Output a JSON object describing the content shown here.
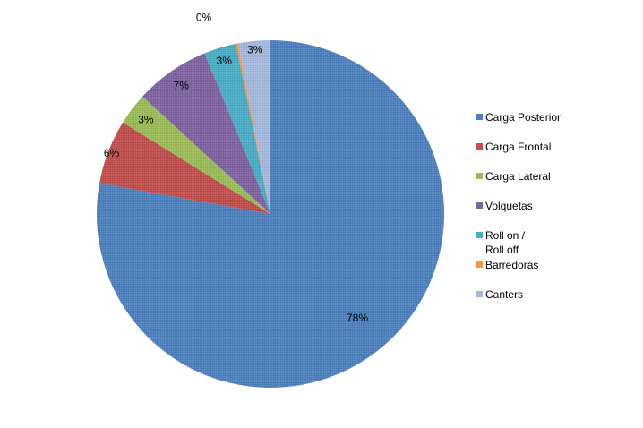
{
  "chart_data": {
    "type": "pie",
    "slices": [
      {
        "name": "Carga Posterior",
        "value": 78,
        "label": "78%",
        "color": "#4F81BD"
      },
      {
        "name": "Carga Frontal",
        "value": 6,
        "label": "6%",
        "color": "#C0504D"
      },
      {
        "name": "Carga Lateral",
        "value": 3,
        "label": "3%",
        "color": "#9BBB59"
      },
      {
        "name": "Volquetas",
        "value": 7,
        "label": "7%",
        "color": "#8064A2"
      },
      {
        "name": "Roll on /\nRoll off",
        "value": 3,
        "label": "3%",
        "color": "#4BACC6"
      },
      {
        "name": "Barredoras",
        "value": 0.2,
        "label": "0%",
        "color": "#F79646"
      },
      {
        "name": "Canters",
        "value": 3,
        "label": "3%",
        "color": "#A5B9DD"
      }
    ],
    "legend_position": "right"
  }
}
